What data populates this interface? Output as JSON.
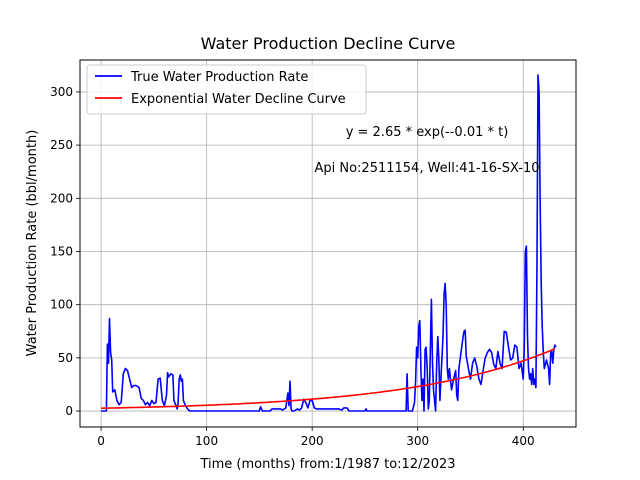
{
  "chart_data": {
    "type": "line",
    "title": "Water Production Decline Curve",
    "xlabel": "Time (months) from:1/1987 to:12/2023",
    "ylabel": "Water Production Rate (bbl/month)",
    "xlim": [
      -20,
      450
    ],
    "ylim": [
      -15,
      330
    ],
    "xticks": [
      0,
      100,
      200,
      300,
      400
    ],
    "yticks": [
      0,
      50,
      100,
      150,
      200,
      250,
      300
    ],
    "grid": true,
    "legend_position": "top-left",
    "annotations": [
      "y = 2.65 * exp(--0.01 * t)",
      "Api No:2511154, Well:41-16-SX-10"
    ],
    "series": [
      {
        "name": "True Water Production Rate",
        "color": "#0000ff",
        "points": [
          [
            0,
            0
          ],
          [
            2,
            0
          ],
          [
            5,
            0
          ],
          [
            6,
            63
          ],
          [
            7,
            45
          ],
          [
            8,
            87
          ],
          [
            9,
            55
          ],
          [
            10,
            48
          ],
          [
            11,
            18
          ],
          [
            13,
            20
          ],
          [
            15,
            10
          ],
          [
            17,
            6
          ],
          [
            19,
            8
          ],
          [
            21,
            35
          ],
          [
            23,
            40
          ],
          [
            25,
            38
          ],
          [
            27,
            30
          ],
          [
            29,
            22
          ],
          [
            31,
            24
          ],
          [
            33,
            24
          ],
          [
            36,
            22
          ],
          [
            38,
            12
          ],
          [
            40,
            10
          ],
          [
            42,
            6
          ],
          [
            44,
            8
          ],
          [
            46,
            5
          ],
          [
            48,
            10
          ],
          [
            50,
            7
          ],
          [
            52,
            8
          ],
          [
            54,
            30
          ],
          [
            56,
            31
          ],
          [
            58,
            10
          ],
          [
            60,
            5
          ],
          [
            62,
            15
          ],
          [
            63,
            36
          ],
          [
            64,
            32
          ],
          [
            66,
            35
          ],
          [
            68,
            34
          ],
          [
            69,
            10
          ],
          [
            71,
            5
          ],
          [
            72,
            2
          ],
          [
            73,
            8
          ],
          [
            74,
            30
          ],
          [
            75,
            34
          ],
          [
            76,
            28
          ],
          [
            77,
            30
          ],
          [
            78,
            10
          ],
          [
            80,
            5
          ],
          [
            82,
            2
          ],
          [
            84,
            0
          ],
          [
            90,
            0
          ],
          [
            100,
            0
          ],
          [
            120,
            0
          ],
          [
            140,
            0
          ],
          [
            150,
            0
          ],
          [
            151,
            4
          ],
          [
            152,
            2
          ],
          [
            153,
            0
          ],
          [
            160,
            0
          ],
          [
            162,
            2
          ],
          [
            165,
            2
          ],
          [
            170,
            2
          ],
          [
            172,
            1
          ],
          [
            175,
            3
          ],
          [
            177,
            17
          ],
          [
            178,
            5
          ],
          [
            179,
            28
          ],
          [
            180,
            2
          ],
          [
            181,
            0
          ],
          [
            183,
            0
          ],
          [
            186,
            2
          ],
          [
            188,
            1
          ],
          [
            190,
            3
          ],
          [
            192,
            11
          ],
          [
            194,
            8
          ],
          [
            196,
            3
          ],
          [
            198,
            10
          ],
          [
            200,
            10
          ],
          [
            202,
            3
          ],
          [
            204,
            2
          ],
          [
            206,
            2
          ],
          [
            210,
            2
          ],
          [
            215,
            2
          ],
          [
            220,
            2
          ],
          [
            225,
            2
          ],
          [
            228,
            1
          ],
          [
            230,
            3
          ],
          [
            233,
            3
          ],
          [
            235,
            0
          ],
          [
            240,
            0
          ],
          [
            250,
            0
          ],
          [
            251,
            2
          ],
          [
            252,
            0
          ],
          [
            260,
            0
          ],
          [
            270,
            0
          ],
          [
            280,
            0
          ],
          [
            289,
            0
          ],
          [
            290,
            35
          ],
          [
            291,
            0
          ],
          [
            295,
            0
          ],
          [
            297,
            8
          ],
          [
            298,
            28
          ],
          [
            299,
            60
          ],
          [
            300,
            50
          ],
          [
            301,
            80
          ],
          [
            302,
            85
          ],
          [
            303,
            40
          ],
          [
            304,
            10
          ],
          [
            305,
            30
          ],
          [
            306,
            0
          ],
          [
            307,
            58
          ],
          [
            308,
            60
          ],
          [
            309,
            40
          ],
          [
            310,
            2
          ],
          [
            311,
            10
          ],
          [
            312,
            60
          ],
          [
            313,
            105
          ],
          [
            314,
            45
          ],
          [
            315,
            20
          ],
          [
            317,
            0
          ],
          [
            318,
            45
          ],
          [
            319,
            70
          ],
          [
            320,
            50
          ],
          [
            321,
            10
          ],
          [
            322,
            30
          ],
          [
            324,
            70
          ],
          [
            325,
            110
          ],
          [
            326,
            120
          ],
          [
            327,
            100
          ],
          [
            328,
            40
          ],
          [
            329,
            30
          ],
          [
            330,
            40
          ],
          [
            332,
            20
          ],
          [
            334,
            30
          ],
          [
            336,
            38
          ],
          [
            337,
            15
          ],
          [
            338,
            10
          ],
          [
            339,
            40
          ],
          [
            341,
            55
          ],
          [
            343,
            70
          ],
          [
            344,
            75
          ],
          [
            345,
            76
          ],
          [
            346,
            52
          ],
          [
            348,
            40
          ],
          [
            350,
            30
          ],
          [
            352,
            45
          ],
          [
            354,
            50
          ],
          [
            356,
            42
          ],
          [
            358,
            30
          ],
          [
            360,
            25
          ],
          [
            362,
            38
          ],
          [
            364,
            50
          ],
          [
            366,
            55
          ],
          [
            368,
            58
          ],
          [
            370,
            55
          ],
          [
            372,
            44
          ],
          [
            374,
            40
          ],
          [
            376,
            56
          ],
          [
            378,
            45
          ],
          [
            380,
            40
          ],
          [
            382,
            75
          ],
          [
            384,
            74
          ],
          [
            386,
            60
          ],
          [
            388,
            48
          ],
          [
            390,
            50
          ],
          [
            392,
            62
          ],
          [
            394,
            60
          ],
          [
            396,
            40
          ],
          [
            398,
            45
          ],
          [
            400,
            30
          ],
          [
            401,
            60
          ],
          [
            402,
            150
          ],
          [
            403,
            155
          ],
          [
            404,
            70
          ],
          [
            405,
            40
          ],
          [
            406,
            30
          ],
          [
            407,
            35
          ],
          [
            408,
            25
          ],
          [
            409,
            40
          ],
          [
            410,
            25
          ],
          [
            411,
            30
          ],
          [
            412,
            22
          ],
          [
            413,
            140
          ],
          [
            414,
            316
          ],
          [
            415,
            300
          ],
          [
            416,
            200
          ],
          [
            417,
            120
          ],
          [
            418,
            80
          ],
          [
            419,
            55
          ],
          [
            420,
            40
          ],
          [
            422,
            48
          ],
          [
            424,
            40
          ],
          [
            425,
            25
          ],
          [
            426,
            55
          ],
          [
            427,
            56
          ],
          [
            428,
            45
          ],
          [
            429,
            58
          ],
          [
            430,
            62
          ],
          [
            431,
            60
          ]
        ]
      },
      {
        "name": "Exponential Water Decline Curve",
        "color": "#ff0000",
        "function": {
          "a": 2.65,
          "b": 0.0072,
          "t_start": 0,
          "t_end": 431
        }
      }
    ]
  }
}
